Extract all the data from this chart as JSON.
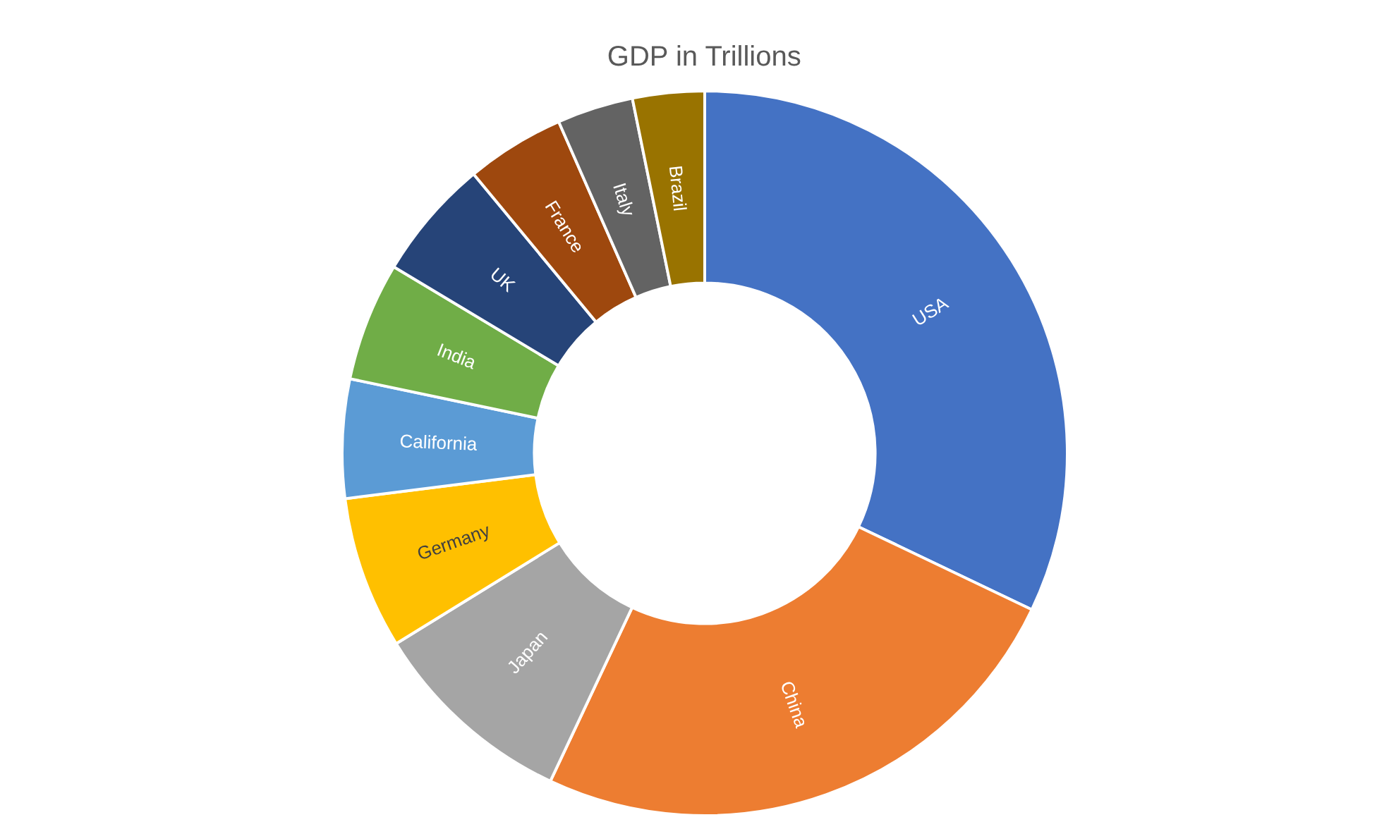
{
  "chart_data": {
    "type": "donut",
    "title": "GDP in Trillions",
    "categories": [
      "USA",
      "China",
      "Japan",
      "Germany",
      "California",
      "India",
      "UK",
      "France",
      "Italy",
      "Brazil"
    ],
    "values": [
      32.1,
      24.9,
      9.2,
      6.8,
      5.3,
      5.3,
      5.4,
      4.4,
      3.4,
      3.2
    ],
    "colors": [
      "#4472c4",
      "#ed7d31",
      "#a5a5a5",
      "#ffc000",
      "#5b9bd5",
      "#70ad47",
      "#264478",
      "#9e480e",
      "#636363",
      "#997300"
    ],
    "legend": false
  }
}
